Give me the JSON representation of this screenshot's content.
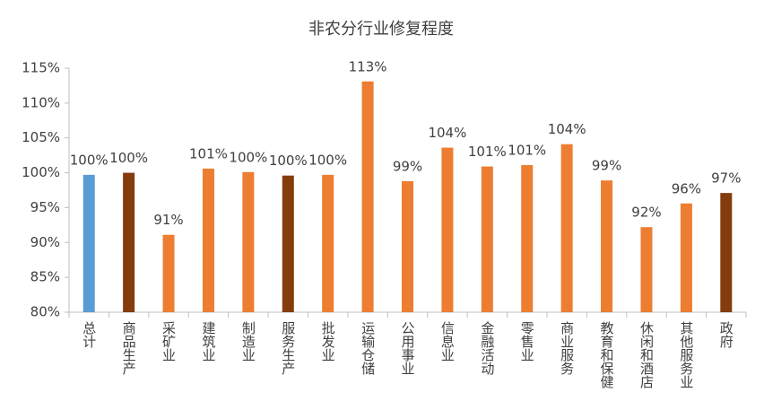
{
  "chart_data": {
    "type": "bar",
    "title": "非农分行业修复程度",
    "categories": [
      "总计",
      "商品生产",
      "采矿业",
      "建筑业",
      "制造业",
      "服务生产",
      "批发业",
      "运输仓储",
      "公用事业",
      "信息业",
      "金融活动",
      "零售业",
      "商业服务",
      "教育和保健",
      "休闲和酒店",
      "其他服务业",
      "政府"
    ],
    "values": [
      99.7,
      100.0,
      91.1,
      100.6,
      100.1,
      99.6,
      99.7,
      113.1,
      98.8,
      103.6,
      100.9,
      101.1,
      104.1,
      98.9,
      92.2,
      95.6,
      97.1
    ],
    "value_labels": [
      "100%",
      "100%",
      "91%",
      "101%",
      "100%",
      "100%",
      "100%",
      "113%",
      "99%",
      "104%",
      "101%",
      "101%",
      "104%",
      "99%",
      "92%",
      "96%",
      "97%"
    ],
    "colors": [
      "#5b9bd5",
      "#843c0c",
      "#ed7d31",
      "#ed7d31",
      "#ed7d31",
      "#843c0c",
      "#ed7d31",
      "#ed7d31",
      "#ed7d31",
      "#ed7d31",
      "#ed7d31",
      "#ed7d31",
      "#ed7d31",
      "#ed7d31",
      "#ed7d31",
      "#ed7d31",
      "#843c0c"
    ],
    "ylim": [
      80,
      115
    ],
    "yticks": [
      {
        "value": 80,
        "label": "80%"
      },
      {
        "value": 85,
        "label": "85%"
      },
      {
        "value": 90,
        "label": "90%"
      },
      {
        "value": 95,
        "label": "95%"
      },
      {
        "value": 100,
        "label": "100%"
      },
      {
        "value": 105,
        "label": "105%"
      },
      {
        "value": 110,
        "label": "110%"
      },
      {
        "value": 115,
        "label": "115%"
      }
    ],
    "grid": false
  }
}
